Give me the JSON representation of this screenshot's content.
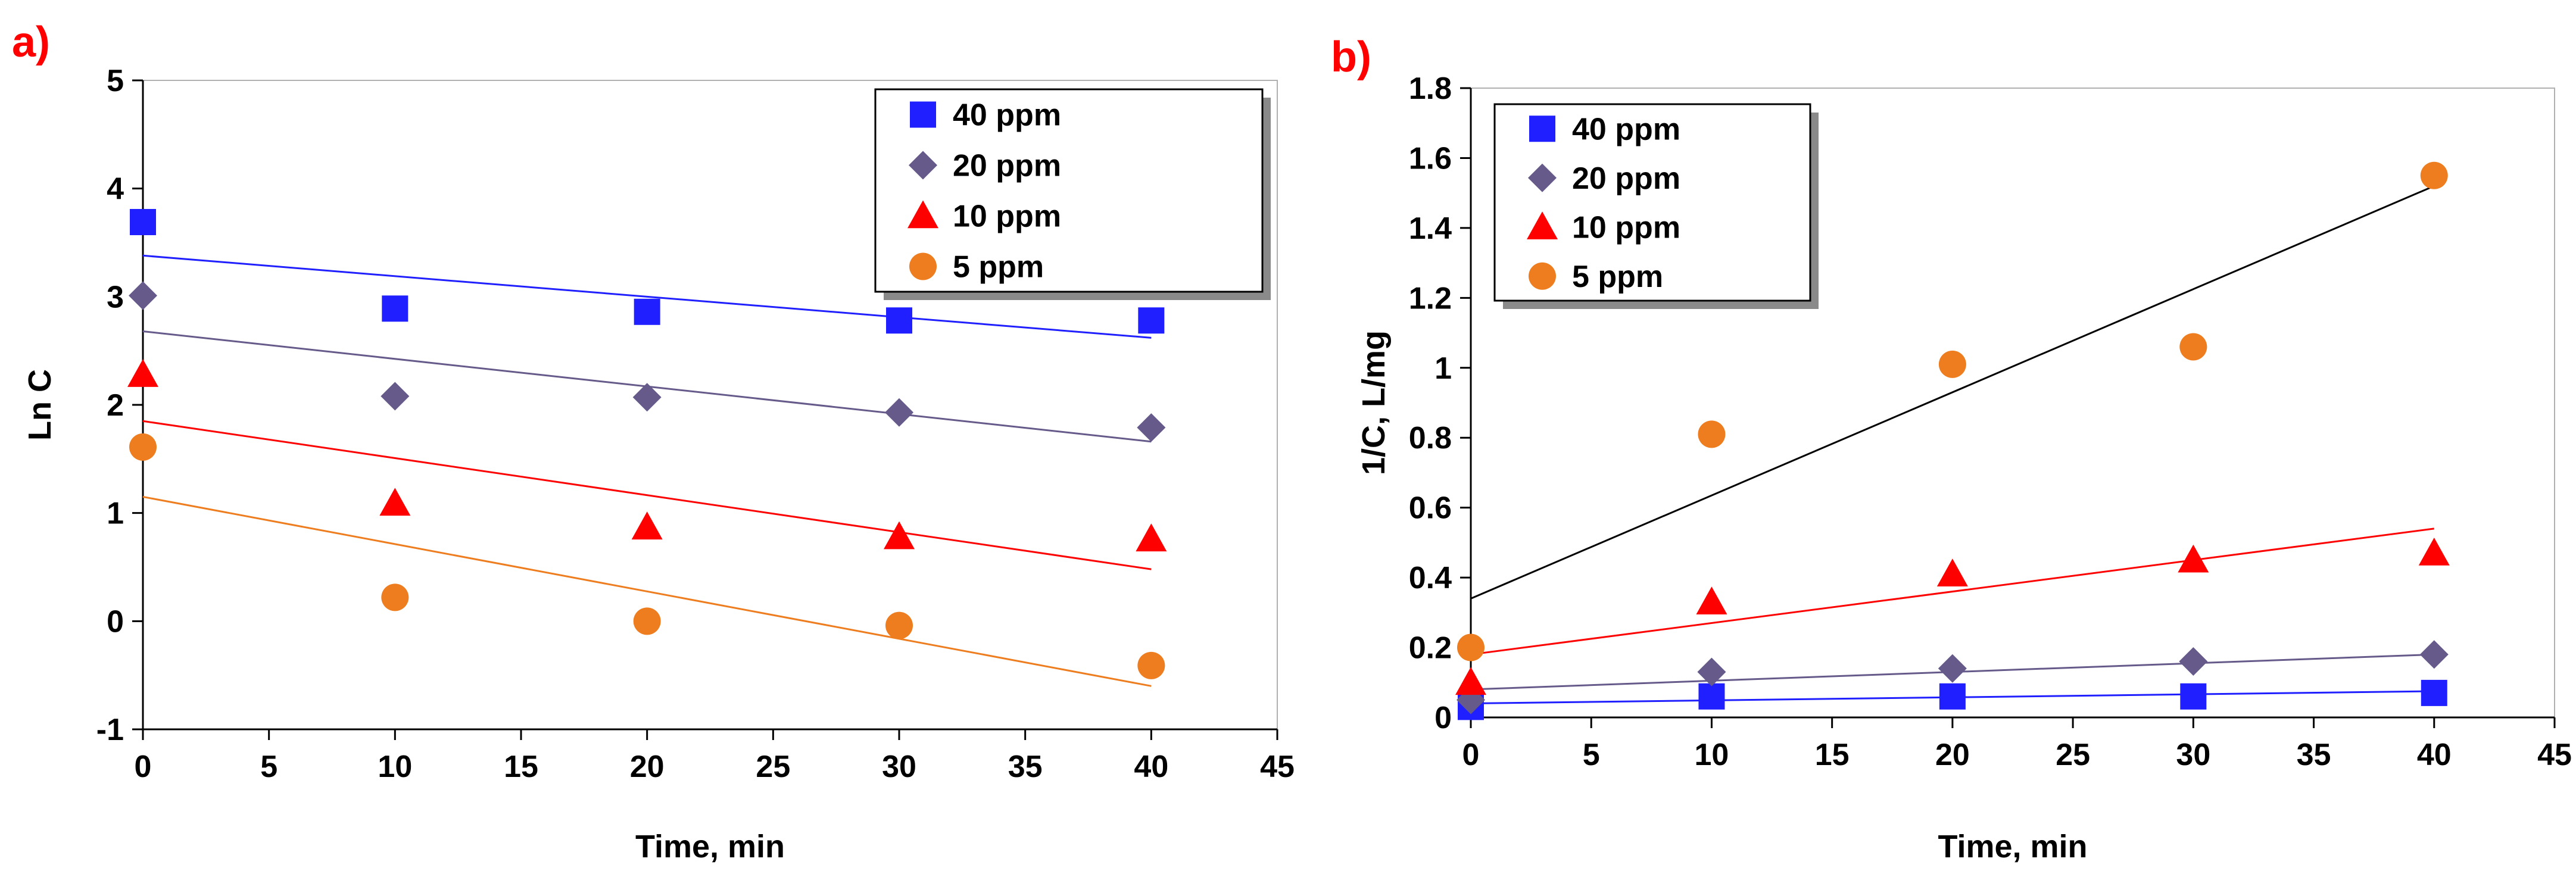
{
  "chart_data": [
    {
      "type": "scatter",
      "panel_label": "a)",
      "xlabel": "Time, min",
      "ylabel": "Ln C",
      "xlim": [
        0,
        45
      ],
      "ylim": [
        -1,
        5
      ],
      "xticks": [
        0,
        5,
        10,
        15,
        20,
        25,
        30,
        35,
        40,
        45
      ],
      "yticks": [
        -1,
        0,
        1,
        2,
        3,
        4,
        5
      ],
      "legend_position": "top-right",
      "series": [
        {
          "name": "40 ppm",
          "marker": "square",
          "color": "#1f1fff",
          "x": [
            0,
            10,
            20,
            30,
            40
          ],
          "y": [
            3.69,
            2.89,
            2.86,
            2.78,
            2.78
          ],
          "fit_line": {
            "x": [
              0,
              40
            ],
            "y": [
              3.38,
              2.62
            ],
            "color": "#1f1fff"
          }
        },
        {
          "name": "20 ppm",
          "marker": "diamond",
          "color": "#665a8a",
          "x": [
            0,
            10,
            20,
            30,
            40
          ],
          "y": [
            3.01,
            2.08,
            2.07,
            1.93,
            1.79
          ],
          "fit_line": {
            "x": [
              0,
              40
            ],
            "y": [
              2.68,
              1.66
            ],
            "color": "#665a8a"
          }
        },
        {
          "name": "10 ppm",
          "marker": "triangle",
          "color": "#ff0000",
          "x": [
            0,
            10,
            20,
            30,
            40
          ],
          "y": [
            2.28,
            1.09,
            0.87,
            0.78,
            0.76
          ],
          "fit_line": {
            "x": [
              0,
              40
            ],
            "y": [
              1.85,
              0.48
            ],
            "color": "#ff0000"
          }
        },
        {
          "name": "5 ppm",
          "marker": "circle",
          "color": "#ed7d1f",
          "x": [
            0,
            10,
            20,
            30,
            40
          ],
          "y": [
            1.61,
            0.22,
            0.0,
            -0.04,
            -0.41
          ],
          "fit_line": {
            "x": [
              0,
              40
            ],
            "y": [
              1.15,
              -0.6
            ],
            "color": "#ed7d1f"
          }
        }
      ]
    },
    {
      "type": "scatter",
      "panel_label": "b)",
      "xlabel": "Time, min",
      "ylabel": "1/C, L/mg",
      "xlim": [
        0,
        45
      ],
      "ylim": [
        0,
        1.8
      ],
      "xticks": [
        0,
        5,
        10,
        15,
        20,
        25,
        30,
        35,
        40,
        45
      ],
      "yticks": [
        0,
        0.2,
        0.4,
        0.6,
        0.8,
        1,
        1.2,
        1.4,
        1.6,
        1.8
      ],
      "legend_position": "top-left",
      "series": [
        {
          "name": "40 ppm",
          "marker": "square",
          "color": "#1f1fff",
          "x": [
            0,
            10,
            20,
            30,
            40
          ],
          "y": [
            0.03,
            0.06,
            0.06,
            0.06,
            0.07
          ],
          "fit_line": {
            "x": [
              0,
              40
            ],
            "y": [
              0.04,
              0.075
            ],
            "color": "#1f1fff"
          }
        },
        {
          "name": "20 ppm",
          "marker": "diamond",
          "color": "#665a8a",
          "x": [
            0,
            10,
            20,
            30,
            40
          ],
          "y": [
            0.05,
            0.13,
            0.14,
            0.16,
            0.18
          ],
          "fit_line": {
            "x": [
              0,
              40
            ],
            "y": [
              0.08,
              0.18
            ],
            "color": "#665a8a"
          }
        },
        {
          "name": "10 ppm",
          "marker": "triangle",
          "color": "#ff0000",
          "x": [
            0,
            10,
            20,
            30,
            40
          ],
          "y": [
            0.1,
            0.33,
            0.41,
            0.45,
            0.47
          ],
          "fit_line": {
            "x": [
              0,
              40
            ],
            "y": [
              0.18,
              0.54
            ],
            "color": "#ff0000"
          }
        },
        {
          "name": "5 ppm",
          "marker": "circle",
          "color": "#ed7d1f",
          "x": [
            0,
            10,
            20,
            30,
            40
          ],
          "y": [
            0.2,
            0.81,
            1.01,
            1.06,
            1.55
          ],
          "fit_line": {
            "x": [
              0,
              40
            ],
            "y": [
              0.34,
              1.52
            ],
            "color": "#000000"
          }
        }
      ]
    }
  ]
}
